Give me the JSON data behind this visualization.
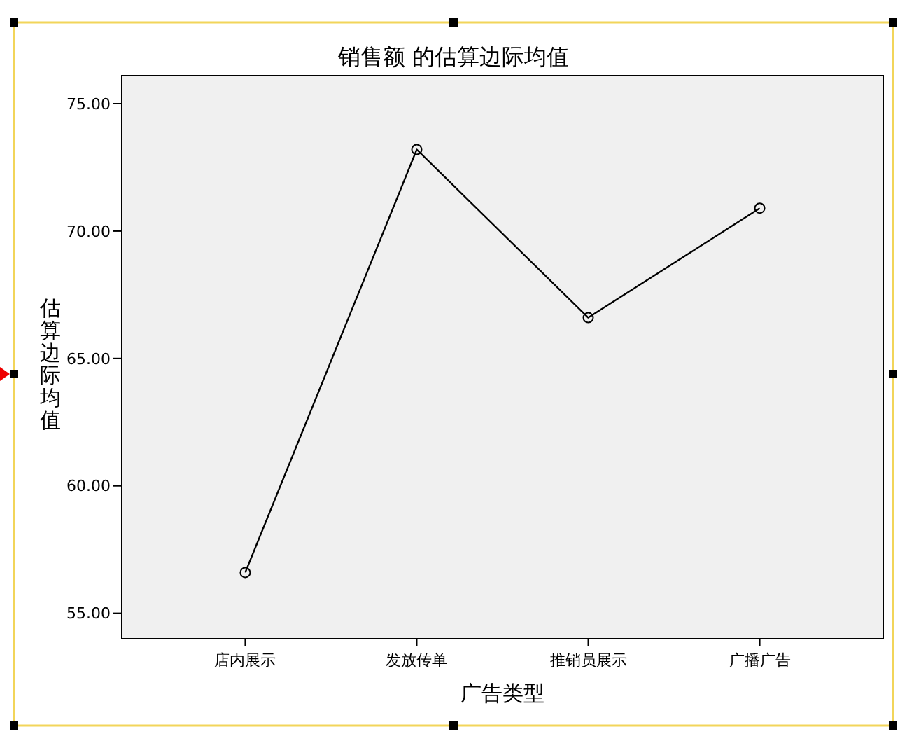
{
  "chart_data": {
    "type": "line",
    "title": "销售额 的估算边际均值",
    "xlabel": "广告类型",
    "ylabel": "估算边际均值",
    "categories": [
      "店内展示",
      "发放传单",
      "推销员展示",
      "广播广告"
    ],
    "series": [
      {
        "color": "#000000",
        "values": [
          56.6,
          73.2,
          66.6,
          70.9
        ]
      }
    ],
    "ylim": [
      54,
      76.1
    ],
    "yticks": [
      {
        "value": 55,
        "label": "55.00"
      },
      {
        "value": 60,
        "label": "60.00"
      },
      {
        "value": 65,
        "label": "65.00"
      },
      {
        "value": 70,
        "label": "70.00"
      },
      {
        "value": 75,
        "label": "75.00"
      }
    ],
    "marker": "circle",
    "line_style": "solid",
    "grid": false
  }
}
